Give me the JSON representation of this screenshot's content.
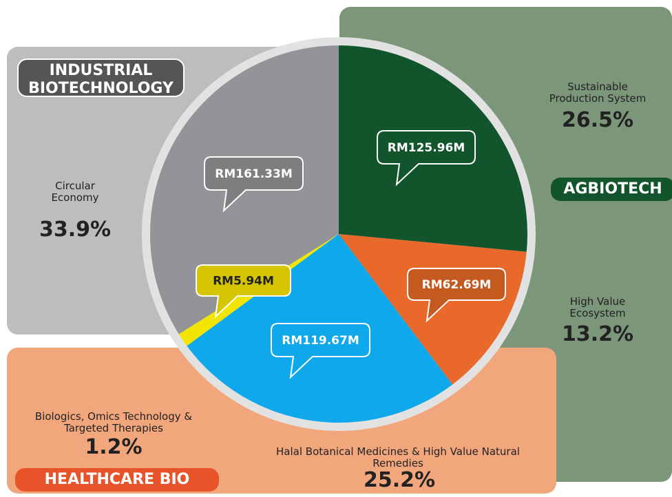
{
  "chart_data": {
    "type": "pie",
    "groups": [
      "INDUSTRIAL BIOTECHNOLOGY",
      "AGBIOTECH",
      "HEALTHCARE BIO"
    ],
    "categories": [
      "Sustainable Production System",
      "High Value Ecosystem",
      "Halal Botanical Medicines & High Value Natural Remedies",
      "Biologics, Omics Technology & Targeted Therapies",
      "Circular Economy"
    ],
    "values": [
      26.5,
      13.2,
      25.2,
      1.2,
      33.9
    ],
    "value_labels": [
      "26.5%",
      "13.2%",
      "25.2%",
      "1.2%",
      "33.9%"
    ],
    "amount_labels": [
      "RM125.96M",
      "RM62.69M",
      "RM119.67M",
      "RM5.94M",
      "RM161.33M"
    ],
    "colors": [
      "#12542c",
      "#e8692a",
      "#0fa8ea",
      "#f2e600",
      "#939497"
    ]
  }
}
